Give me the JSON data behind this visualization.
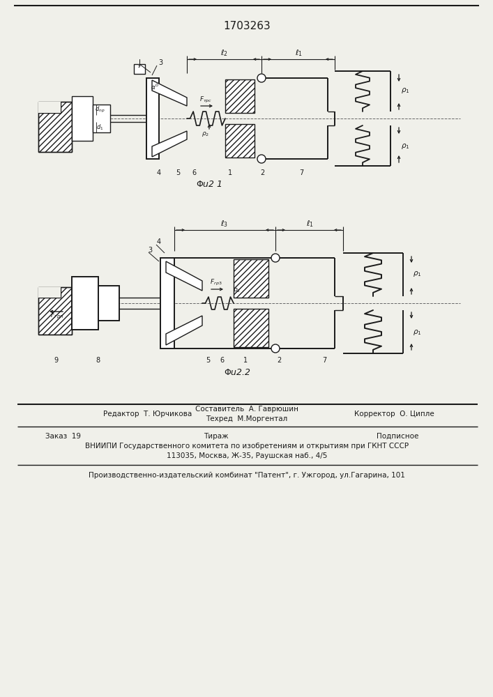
{
  "title": "1703263",
  "fig1_caption": "Фиг.1",
  "fig2_caption": "Фиг.2",
  "editor_line": "Редактор  Т. Юрчикова",
  "compiler_line": "Составитель  А. Гаврюшин",
  "techred_line": "Техред  М.Моргентал",
  "corrector_line": "Корректор  О. Ципле",
  "order_line": "Заказ  19",
  "tirazh_line": "Тираж",
  "podpisnoe_line": "Подписное",
  "vniip_line": "ВНИИПИ Государственного комитета по изобретениям и открытиям при ГКНТ СССР",
  "address_line": "113035, Москва, Ж-35, Раушская наб., 4/5",
  "publisher_line": "Производственно-издательский комбинат \"Патент\", г. Ужгород, ул.Гагарина, 101",
  "bg_color": "#f0f0ea",
  "line_color": "#1a1a1a"
}
